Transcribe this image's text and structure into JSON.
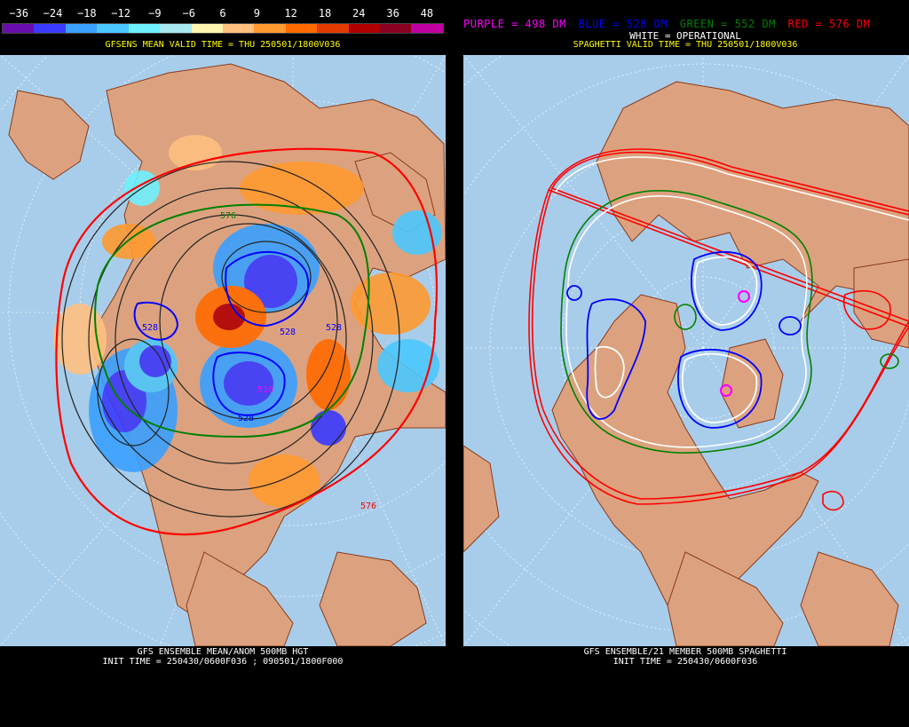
{
  "colorbar": {
    "labels": [
      "−36",
      "−24",
      "−18",
      "−12",
      "−9",
      "−6",
      "6",
      "9",
      "12",
      "18",
      "24",
      "36",
      "48"
    ],
    "colors": [
      "#6a0dad",
      "#3a3aff",
      "#3aa0ff",
      "#4bc8ff",
      "#6ef0ff",
      "#a8e8f0",
      "#fff4b0",
      "#ffc080",
      "#ff9a30",
      "#ff6a00",
      "#e43a00",
      "#b00000",
      "#8a0020",
      "#c000a0"
    ]
  },
  "left_panel": {
    "title": "GFSENS MEAN VALID TIME = THU 250501/1800V036",
    "caption_line1": "GFS ENSEMBLE MEAN/ANOM 500MB HGT",
    "caption_line2": "INIT TIME = 250430/0600F036 ; 090501/1800F000",
    "contour_labels": [
      "528",
      "528",
      "516",
      "528",
      "576",
      "528",
      "576"
    ]
  },
  "right_panel": {
    "legend": {
      "purple": "PURPLE = 498 DM",
      "blue": "BLUE = 528 DM",
      "green": "GREEN = 552 DM",
      "red": "RED = 576 DM",
      "white": "WHITE = OPERATIONAL"
    },
    "title": "SPAGHETTI VALID TIME = THU 250501/1800V036",
    "caption_line1": "GFS ENSEMBLE/21 MEMBER 500MB SPAGHETTI",
    "caption_line2": "INIT TIME = 250430/0600F036"
  },
  "colors": {
    "ocean": "#a8cdea",
    "land": "#dca27f",
    "border": "#8a3a1a",
    "purple": "#ff00ff",
    "blue": "#0000ff",
    "green": "#008000",
    "red": "#ff0000"
  }
}
